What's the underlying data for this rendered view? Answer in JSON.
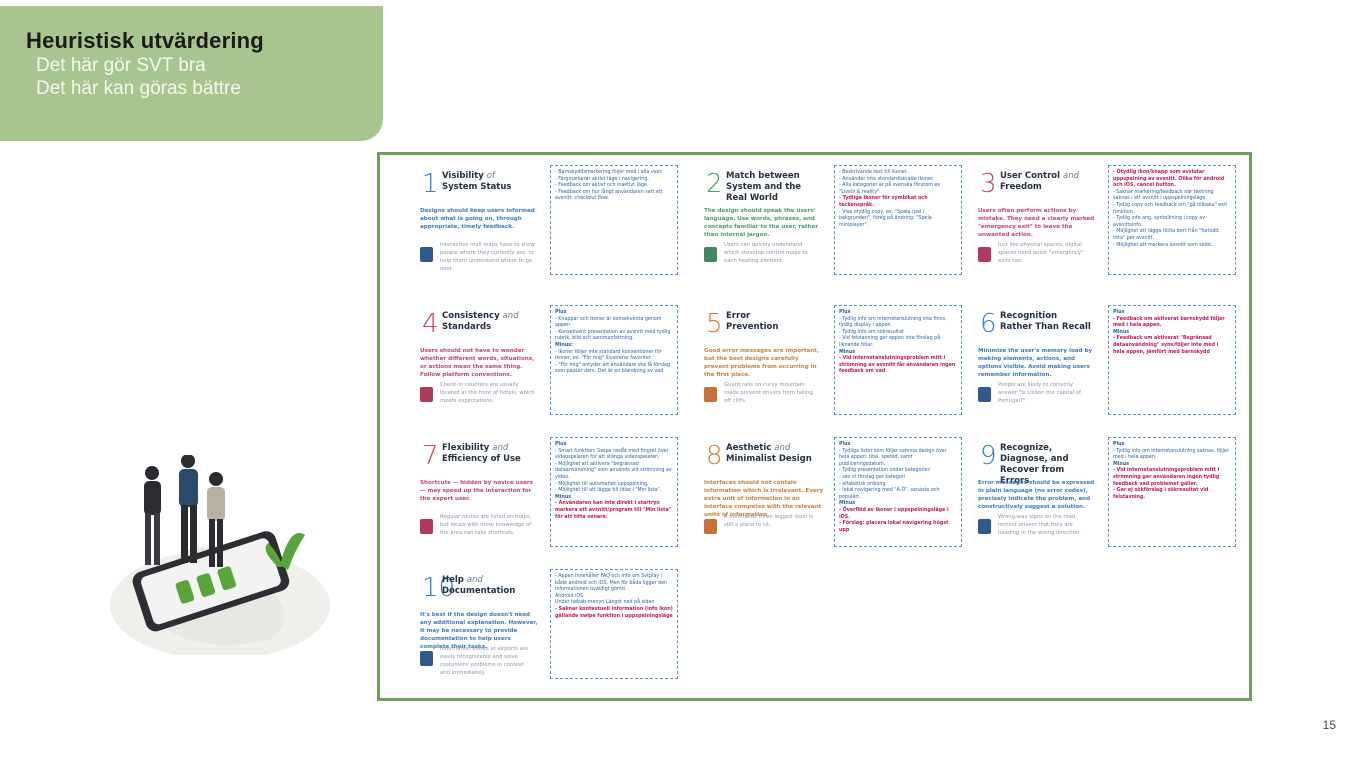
{
  "header": {
    "title": "Heuristisk utvärdering",
    "subtitles": [
      "Det här gör SVT bra",
      "Det här kan göras bättre"
    ]
  },
  "page_number": "15",
  "poster": {
    "cells": [
      {
        "num": "1",
        "title_a": "Visibility",
        "title_i": "of",
        "title_b": "System Status",
        "color": "blue",
        "desc": "Designs should keep users informed about what is going on, through appropriate, timely feedback.",
        "example": "Interactive mall maps have to show people where they currently are, to help them understand where to go next.",
        "note": [
          "- Barnskyddsmarkering följer med i alla vyer.",
          "- Färgmarkerar aktivt läge i navigering.",
          "- Feedback om aktivt och inaktivt läge.",
          "- Feedback om hur långt användaren satt ett avsnitt: checkout flow."
        ]
      },
      {
        "num": "2",
        "title_a": "Match between",
        "title_i": "",
        "title_b": "System and the Real World",
        "color": "green",
        "desc": "The design should speak the users' language. Use words, phrases, and concepts familiar to the user, rather than internal jargon.",
        "example": "Users can quickly understand which stovetop control maps to each heating element.",
        "note": [
          "- Beskrivande text till ikoner.",
          "- Använder inte standardiserade ikoner.",
          "- Alla kategorier är på svenska förutom ex \"Livstil & reality\".",
          "- Tydliga ikoner för symbikat och teckenspråk.",
          "- Visa otydlig copy, ex. \"Spela (pal i bakgrunden\", föreg på ändring: \"Spela miniplayer\"."
        ]
      },
      {
        "num": "3",
        "title_a": "User Control",
        "title_i": "and",
        "title_b": "Freedom",
        "color": "red",
        "desc": "Users often perform actions by mistake. They need a clearly marked \"emergency exit\" to leave the unwanted action.",
        "example": "Just like physical spaces, digital spaces need quick \"emergency\" exits too.",
        "note": [
          "- Otydlig ikon/knapp som avslutar uppspelning av avsnitt. Olika för android och iOS, cancel button.",
          "- Saknar markering/feedback när textning saknas i ett avsnitt i uppspelningsläge.",
          "- Tydlig copy och feedback om \"gå tillbaka\" exit funktion.",
          "- Tydlig info ang. syntolkning i copy av avsnittsinfo.",
          "- Möjlighet att lägga till/ta bort från \"fortsätt titta\" per avsnitt.",
          "- Möjlighet att markera avsnitt som sedd."
        ]
      },
      {
        "num": "4",
        "title_a": "Consistency",
        "title_i": "and",
        "title_b": "Standards",
        "color": "red",
        "desc": "Users should not have to wonder whether different words, situations, or actions mean the same thing. Follow platform conventions.",
        "example": "Check-in counters are usually located at the front of hotels, which meets expectations.",
        "note": [
          "Plus",
          "- Knappar och ikoner är konsekventa genom appen",
          "- Konsekvent presentation av avsnitt med tydlig rubrik, bild och sammanfattning.",
          "Minus:",
          "- Ikoner följer inte standard konventioner för ikoner, ex. \"För mig\" illustrerar favoriter.",
          "- \"För mig\" antyder att användare ska få förslag som passar dem. Det är en blandning av vad"
        ]
      },
      {
        "num": "5",
        "title_a": "Error",
        "title_i": "",
        "title_b": "Prevention",
        "color": "orange",
        "desc": "Good error messages are important, but the best designs carefully prevent problems from occurring in the first place.",
        "example": "Guard rails on curvy mountain roads prevent drivers from falling off cliffs.",
        "note": [
          "Plus",
          "- Tydlig info om internetanslutning inte finns, tydlig display i appen.",
          "- Tydlig info om sökresultat",
          "- Vid felstavning ger appen inte förslag på liknande titlar.",
          "Minus",
          "- Vid internetanslutningsproblem mitt i strömning av avsnitt får användaren ingen feedback om vad"
        ]
      },
      {
        "num": "6",
        "title_a": "Recognition",
        "title_i": "",
        "title_b": "Rather Than Recall",
        "color": "blue",
        "desc": "Minimize the user's memory load by making elements, actions, and options visible. Avoid making users remember information.",
        "example": "People are likely to correctly answer \"Is Lisbon the capital of Portugal?\".",
        "note": [
          "Plus",
          "- Feedback om aktiverat barnskydd följer med i hela appen.",
          "Minus",
          "- Feedback om aktiverat \"Begränsad dataanvändning\" syns/följer inte med i hela appen, jämfört med barnskydd"
        ]
      },
      {
        "num": "7",
        "title_a": "Flexibility",
        "title_i": "and",
        "title_b": "Efficiency of Use",
        "color": "red",
        "desc": "Shortcuts — hidden by novice users — may speed up the interaction for the expert user.",
        "example": "Regular routes are listed on maps, but locals with more knowledge of the area can take shortcuts.",
        "note": [
          "Plus",
          "- Smart funktion: Swipe nedåt med fingret över videospelaren för att stänga videospelaren.",
          "- Möjlighet att aktivera \"begränsad dataanvändning\" som används vid strömning av video.",
          "- Möjlighet till automatisk uppspelning.",
          "- Möjlighet till att lägga till titlar i \"Min lista\".",
          "Minus",
          "- Användaren kan inte direkt i startryn markera ett avsnitt/program till \"Min lista\" för att titta senare."
        ]
      },
      {
        "num": "8",
        "title_a": "Aesthetic",
        "title_i": "and",
        "title_b": "Minimalist Design",
        "color": "orange",
        "desc": "Interfaces should not contain information which is irrelevant. Every extra unit of information in an interface competes with the relevant units of information.",
        "example": "A minimalist three-legged stool is still a place to sit.",
        "note": [
          "Plus",
          "- Tydliga listor som följer samma design över hela appen: titel, spetiid, samt publiceringsdatum.",
          "- Tydlig presentation under kategorier:",
          "  - sex st förslag per kategori",
          "  - alfabetisk ordning",
          "  - lokal navigering med \"A-Ö\", senaste och populärt.",
          "Minus",
          "- Överflöd av ikoner i uppspelningsläge i iOS.",
          "- Förslag: placera lokal navigering högst upp"
        ]
      },
      {
        "num": "9",
        "title_a": "Recognize,",
        "title_i": "",
        "title_b": "Diagnose, and Recover from Errors",
        "color": "blue",
        "desc": "Error messages should be expressed in plain language (no error codes), precisely indicate the problem, and constructively suggest a solution.",
        "example": "Wrong-way signs on the road remind drivers that they are heading in the wrong direction.",
        "note": [
          "Plus",
          "- Tydlig info om internetanslutning saknas, följer med i hela appen.",
          "Minus",
          "- Vid internetanslutningsproblem mitt i strömning ger användaren ingen tydlig feedback vad problemet gäller.",
          "- Ger ej sökförslag i sökresultat vid felstavning."
        ]
      },
      {
        "num": "10",
        "title_a": "Help",
        "title_i": "and",
        "title_b": "Documentation",
        "color": "blue",
        "desc": "It's best if the design doesn't need any additional explanation. However, it may be necessary to provide documentation to help users complete their tasks.",
        "example": "Information kiosks at airports are easily recognizable and solve customers' problems in context and immediately.",
        "note": [
          "- Appen innehåller FAQ och info om Svtplay i både android och iOS. Men för båda ligger den informationen oväldigt gömd.",
          "Android               iOS",
          "Under hebab-menyn     Längst ned på sidan",
          "- Saknar kontextuell information (info ikon) gällande swipe funktion i uppspelningsläge"
        ]
      }
    ]
  }
}
